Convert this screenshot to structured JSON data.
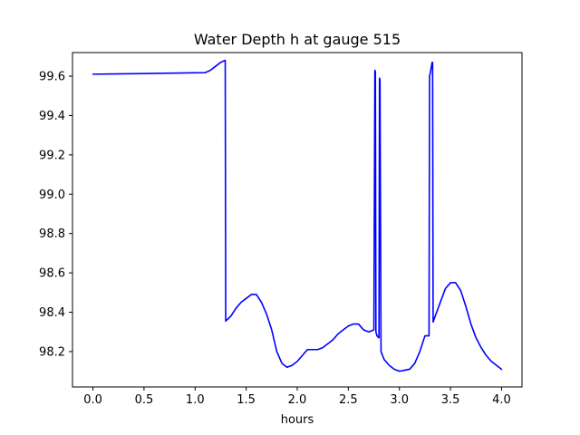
{
  "chart_data": {
    "type": "line",
    "title": "Water Depth h at gauge 515",
    "xlabel": "hours",
    "ylabel": "",
    "xlim": [
      -0.2,
      4.2
    ],
    "ylim": [
      98.02,
      99.72
    ],
    "xticks": [
      0.0,
      0.5,
      1.0,
      1.5,
      2.0,
      2.5,
      3.0,
      3.5,
      4.0
    ],
    "xtick_labels": [
      "0.0",
      "0.5",
      "1.0",
      "1.5",
      "2.0",
      "2.5",
      "3.0",
      "3.5",
      "4.0"
    ],
    "yticks": [
      98.2,
      98.4,
      98.6,
      98.8,
      99.0,
      99.2,
      99.4,
      99.6
    ],
    "ytick_labels": [
      "98.2",
      "98.4",
      "98.6",
      "98.8",
      "99.0",
      "99.2",
      "99.4",
      "99.6"
    ],
    "grid": false,
    "series": [
      {
        "color": "#0000ff",
        "x": [
          0.0,
          0.5,
          1.0,
          1.1,
          1.15,
          1.2,
          1.25,
          1.29,
          1.295,
          1.3,
          1.35,
          1.4,
          1.45,
          1.5,
          1.55,
          1.6,
          1.65,
          1.7,
          1.75,
          1.8,
          1.85,
          1.9,
          1.95,
          2.0,
          2.05,
          2.1,
          2.15,
          2.2,
          2.25,
          2.3,
          2.35,
          2.4,
          2.45,
          2.5,
          2.55,
          2.6,
          2.65,
          2.7,
          2.75,
          2.76,
          2.765,
          2.77,
          2.78,
          2.8,
          2.805,
          2.81,
          2.82,
          2.85,
          2.9,
          2.95,
          3.0,
          3.05,
          3.1,
          3.15,
          3.2,
          3.25,
          3.29,
          3.295,
          3.3,
          3.32,
          3.325,
          3.33,
          3.35,
          3.4,
          3.45,
          3.5,
          3.55,
          3.6,
          3.65,
          3.7,
          3.75,
          3.8,
          3.85,
          3.9,
          3.95,
          4.0
        ],
        "y": [
          99.61,
          99.613,
          99.617,
          99.618,
          99.63,
          99.65,
          99.67,
          99.68,
          99.68,
          98.355,
          98.38,
          98.42,
          98.45,
          98.47,
          98.49,
          98.49,
          98.45,
          98.39,
          98.31,
          98.2,
          98.14,
          98.12,
          98.13,
          98.15,
          98.18,
          98.21,
          98.21,
          98.21,
          98.22,
          98.24,
          98.26,
          98.29,
          98.31,
          98.33,
          98.34,
          98.34,
          98.31,
          98.3,
          98.31,
          99.63,
          99.62,
          98.3,
          98.28,
          98.27,
          99.59,
          99.58,
          98.2,
          98.16,
          98.13,
          98.11,
          98.1,
          98.105,
          98.11,
          98.14,
          98.2,
          98.28,
          98.28,
          99.6,
          99.61,
          99.67,
          99.67,
          98.35,
          98.38,
          98.45,
          98.52,
          98.55,
          98.55,
          98.51,
          98.43,
          98.34,
          98.27,
          98.22,
          98.18,
          98.15,
          98.13,
          98.11
        ]
      }
    ]
  }
}
